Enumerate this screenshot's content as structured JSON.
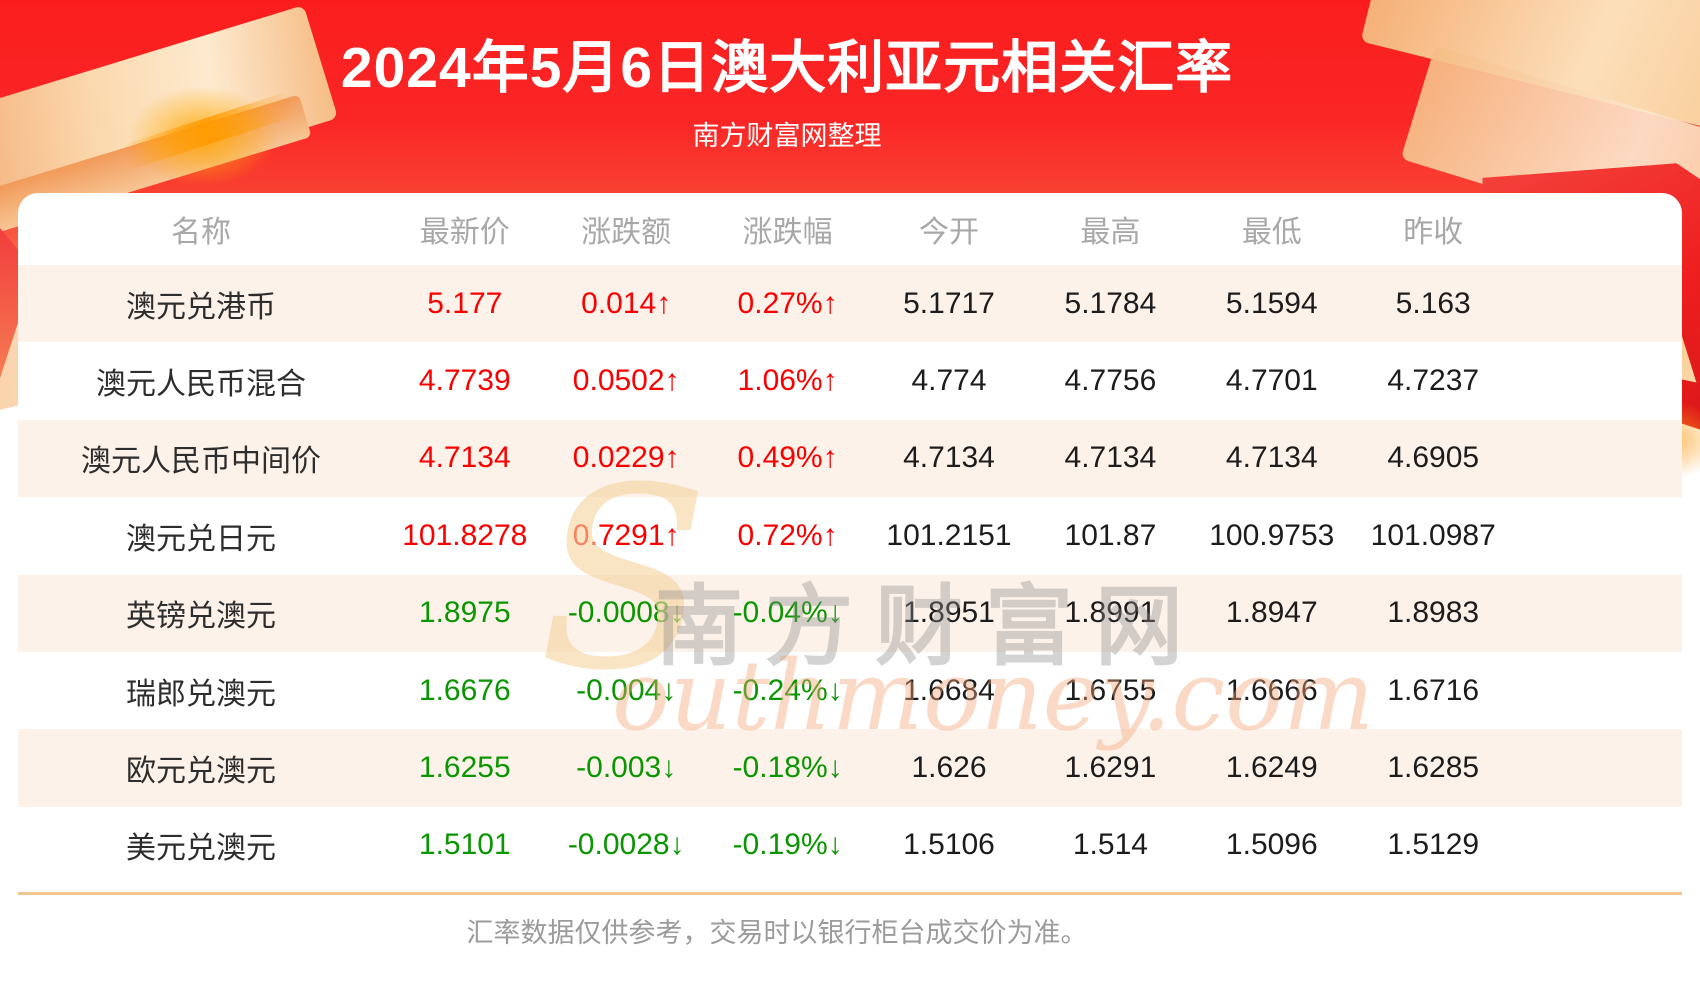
{
  "header": {
    "title": "2024年5月6日澳大利亚元相关汇率",
    "subtitle": "南方财富网整理"
  },
  "watermark": {
    "swoosh": "S",
    "cn": "南方财富网",
    "en": "outhmoney.com"
  },
  "footer": {
    "note": "汇率数据仅供参考，交易时以银行柜台成交价为准。"
  },
  "colors": {
    "up": "#fb0000",
    "down": "#0a9600",
    "hero_red": "#fa2424",
    "alt_row_bg": "#fdf2ea",
    "divider": "#f2c68f",
    "muted_text": "#a8a8a8"
  },
  "chart_data": {
    "type": "table",
    "title": "2024年5月6日澳大利亚元相关汇率",
    "columns": [
      "名称",
      "最新价",
      "涨跌额",
      "涨跌幅",
      "今开",
      "最高",
      "最低",
      "昨收"
    ],
    "rows": [
      {
        "name": "澳元兑港币",
        "latest": "5.177",
        "change": "0.014↑",
        "change_pct": "0.27%↑",
        "open": "5.1717",
        "high": "5.1784",
        "low": "5.1594",
        "prev_close": "5.163",
        "trend": "up"
      },
      {
        "name": "澳元人民币混合",
        "latest": "4.7739",
        "change": "0.0502↑",
        "change_pct": "1.06%↑",
        "open": "4.774",
        "high": "4.7756",
        "low": "4.7701",
        "prev_close": "4.7237",
        "trend": "up"
      },
      {
        "name": "澳元人民币中间价",
        "latest": "4.7134",
        "change": "0.0229↑",
        "change_pct": "0.49%↑",
        "open": "4.7134",
        "high": "4.7134",
        "low": "4.7134",
        "prev_close": "4.6905",
        "trend": "up"
      },
      {
        "name": "澳元兑日元",
        "latest": "101.8278",
        "change": "0.7291↑",
        "change_pct": "0.72%↑",
        "open": "101.2151",
        "high": "101.87",
        "low": "100.9753",
        "prev_close": "101.0987",
        "trend": "up"
      },
      {
        "name": "英镑兑澳元",
        "latest": "1.8975",
        "change": "-0.0008↓",
        "change_pct": "-0.04%↓",
        "open": "1.8951",
        "high": "1.8991",
        "low": "1.8947",
        "prev_close": "1.8983",
        "trend": "down"
      },
      {
        "name": "瑞郎兑澳元",
        "latest": "1.6676",
        "change": "-0.004↓",
        "change_pct": "-0.24%↓",
        "open": "1.6684",
        "high": "1.6755",
        "low": "1.6666",
        "prev_close": "1.6716",
        "trend": "down"
      },
      {
        "name": "欧元兑澳元",
        "latest": "1.6255",
        "change": "-0.003↓",
        "change_pct": "-0.18%↓",
        "open": "1.626",
        "high": "1.6291",
        "low": "1.6249",
        "prev_close": "1.6285",
        "trend": "down"
      },
      {
        "name": "美元兑澳元",
        "latest": "1.5101",
        "change": "-0.0028↓",
        "change_pct": "-0.19%↓",
        "open": "1.5106",
        "high": "1.514",
        "low": "1.5096",
        "prev_close": "1.5129",
        "trend": "down"
      }
    ]
  }
}
